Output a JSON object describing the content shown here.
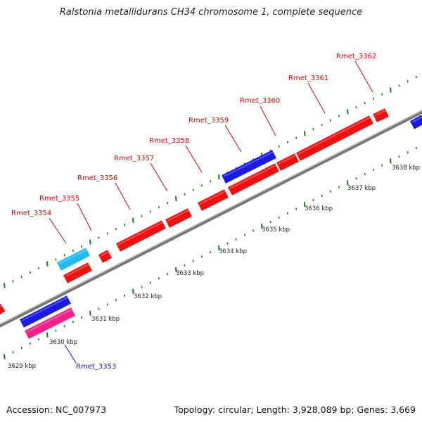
{
  "title": "Ralstonia metallidurans CH34 chromosome 1, complete sequence",
  "footer": {
    "accession": "Accession: NC_007973",
    "stats": "Topology: circular; Length: 3,928,089 bp; Genes: 3,669"
  },
  "colors": {
    "gene_red": "#ee1111",
    "gene_blue": "#1a1ae0",
    "gene_cyan": "#22bbee",
    "gene_pink": "#ee2288",
    "label_red": "#dd0000",
    "label_blue": "#1111cc",
    "tick_green": "#1a7a1a",
    "backbone": "#888888"
  },
  "scale_labels": [
    "3629 kbp",
    "3630 kbp",
    "3631 kbp",
    "3632 kbp",
    "3633 kbp",
    "3634 kbp",
    "3635 kbp",
    "3636 kbp",
    "3637 kbp",
    "3638 kbp"
  ],
  "gene_labels": [
    {
      "text": "Rmet_3354",
      "color": "red"
    },
    {
      "text": "Rmet_3355",
      "color": "red"
    },
    {
      "text": "Rmet_3356",
      "color": "red"
    },
    {
      "text": "Rmet_3357",
      "color": "red"
    },
    {
      "text": "Rmet_3358",
      "color": "red"
    },
    {
      "text": "Rmet_3359",
      "color": "red"
    },
    {
      "text": "Rmet_3360",
      "color": "red"
    },
    {
      "text": "Rmet_3361",
      "color": "red"
    },
    {
      "text": "Rmet_3362",
      "color": "red"
    },
    {
      "text": "Rmet_3353",
      "color": "blue"
    }
  ]
}
